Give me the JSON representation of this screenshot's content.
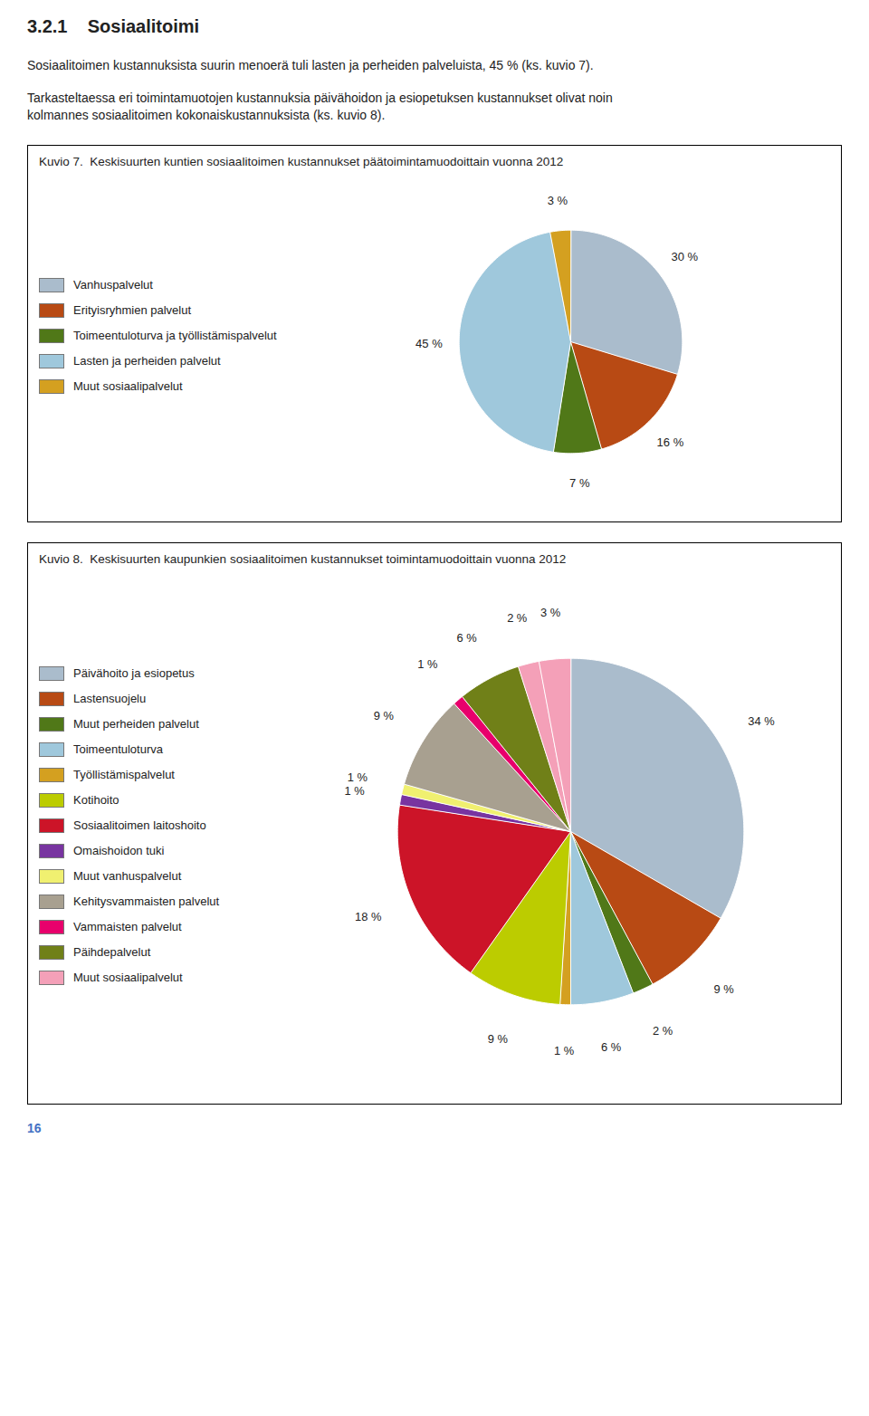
{
  "title": "3.2.1    Sosiaalitoimi",
  "annotations": [
    {
      "text": "Sosiaalitoimen kustannuksista suurin menoerä tuli lasten ja perheiden palveluista, 45 % (ks. kuvio 7)."
    },
    {
      "text": "Tarkasteltaessa eri toimintamuotojen kustannuksia päivähoidon ja esiopetuksen kustannukset olivat noin"
    },
    {
      "text": "kolmannes sosiaalitoimen kokonaiskustannuksista (ks. kuvio 8)."
    },
    {
      "text": "16",
      "color": "#4472C4"
    }
  ],
  "chart_data": [
    {
      "type": "pie",
      "title": "Kuvio 7.  Keskisuurten kuntien sosiaalitoimen kustannukset päätoimintamuodoittain vuonna 2012",
      "categories": [
        "Vanhuspalvelut",
        "Erityisryhmien palvelut",
        "Toimeentuloturva ja työllistämispalvelut",
        "Lasten ja perheiden palvelut",
        "Muut sosiaalipalvelut"
      ],
      "values": [
        30,
        16,
        7,
        45,
        3
      ],
      "value_labels": [
        "30 %",
        "16 %",
        "7 %",
        "45 %",
        "3 %"
      ],
      "colors": [
        "#AABCCC",
        "#B84A14",
        "#507818",
        "#9FC8DC",
        "#D4A020"
      ],
      "data_labels": true,
      "legend": "left"
    },
    {
      "type": "pie",
      "title": "Kuvio 8.  Keskisuurten kaupunkien sosiaalitoimen kustannukset toimintamuodoittain vuonna 2012",
      "categories": [
        "Päivähoito ja esiopetus",
        "Lastensuojelu",
        "Muut perheiden palvelut",
        "Toimeentuloturva",
        "Työllistämispalvelut",
        "Kotihoito",
        "Sosiaalitoimen laitoshoito",
        "Omaishoidon tuki",
        "Muut vanhuspalvelut",
        "Kehitysvammaisten palvelut",
        "Vammaisten palvelut",
        "Päihdepalvelut",
        "Muut sosiaalipalvelut",
        null
      ],
      "values": [
        34,
        9,
        2,
        6,
        1,
        9,
        18,
        1,
        1,
        9,
        1,
        6,
        2,
        3
      ],
      "value_labels": [
        "34 %",
        "9 %",
        "2 %",
        "6 %",
        "1 %",
        "9 %",
        "18 %",
        "1 %",
        "1 %",
        "9 %",
        "1 %",
        "6 %",
        "2 %",
        "3 %"
      ],
      "colors": [
        "#AABCCC",
        "#B84A14",
        "#507818",
        "#9FC8DC",
        "#D4A020",
        "#BCCC00",
        "#CC1428",
        "#7834A0",
        "#F0F070",
        "#A8A090",
        "#E8006C",
        "#708018",
        "#F4A0B8",
        "#F4A0B8"
      ],
      "data_labels": true,
      "legend": "left"
    }
  ]
}
